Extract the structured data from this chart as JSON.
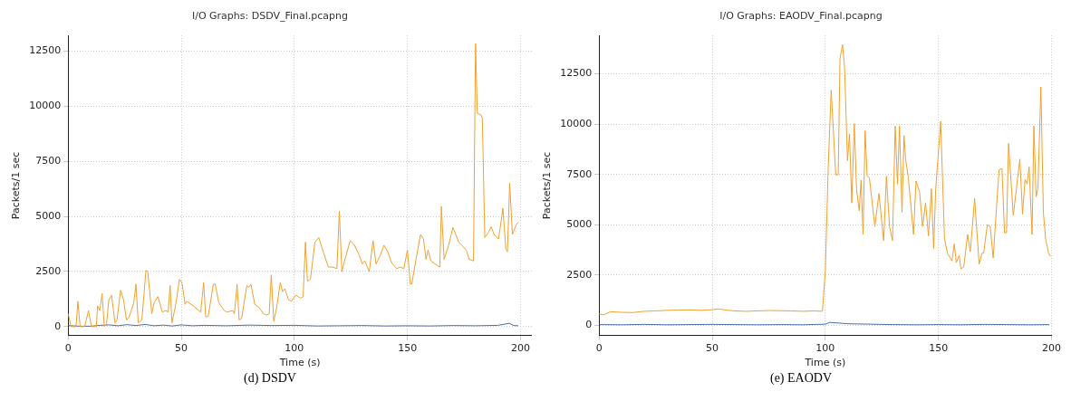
{
  "chart_data": [
    {
      "type": "line",
      "title": "I/O Graphs: DSDV_Final.pcapng",
      "xlabel": "Time (s)",
      "ylabel": "Packets/1 sec",
      "annotations": [
        "(d) DSDV"
      ],
      "xlim": [
        0,
        205
      ],
      "ylim": [
        -400,
        13200
      ],
      "xticks": [
        0,
        50,
        100,
        150,
        200
      ],
      "yticks": [
        0,
        2500,
        5000,
        7500,
        10000,
        12500
      ],
      "grid": true,
      "legend": false,
      "marker": "none",
      "line_style": "solid",
      "series": [
        {
          "color": "#f0a030",
          "x": [
            0,
            1.3,
            3.5,
            4.3,
            5.3,
            7.3,
            9,
            10.3,
            12.5,
            13,
            14,
            15,
            16,
            17,
            18,
            19.2,
            20.7,
            21.6,
            23.2,
            24.5,
            25.8,
            27,
            29,
            30,
            31,
            32.6,
            34.4,
            35.2,
            37,
            38,
            39.7,
            41.6,
            43.2,
            44.2,
            45.1,
            45.9,
            47.7,
            49.2,
            50.3,
            51.7,
            52.4,
            55.4,
            58.6,
            59.9,
            60.8,
            61.9,
            64.2,
            65,
            66.6,
            69,
            70.2,
            72.8,
            73.5,
            74.7,
            75.6,
            76.7,
            79,
            79.9,
            80.8,
            82.5,
            84.4,
            86.3,
            87.6,
            88.9,
            89.8,
            90.9,
            92.2,
            93.8,
            94.8,
            95.8,
            97.4,
            98.7,
            100.6,
            102.6,
            103.9,
            104.9,
            105.8,
            107.1,
            109.1,
            110.8,
            113,
            115,
            116.9,
            118.8,
            119.9,
            121,
            122,
            124.7,
            126.6,
            128.6,
            130.1,
            131.2,
            133.1,
            134.8,
            136.1,
            137.9,
            139.6,
            141.3,
            142.9,
            145.2,
            146.8,
            148.4,
            150,
            151.3,
            151.9,
            153.9,
            155.8,
            157.1,
            158.2,
            159.1,
            160.4,
            162.3,
            164.3,
            165,
            166.2,
            168.2,
            170.1,
            172.7,
            176,
            177.3,
            179.2,
            180.1,
            180.9,
            182.5,
            183.1,
            184.2,
            185.7,
            187,
            188.3,
            190.3,
            192.2,
            193.5,
            194.2,
            195.2,
            196.4,
            198,
            199
          ],
          "values": [
            590,
            0,
            0,
            1150,
            0,
            0,
            730,
            0,
            0,
            940,
            730,
            1500,
            0,
            140,
            1220,
            1430,
            170,
            300,
            1650,
            1220,
            300,
            440,
            1080,
            1930,
            170,
            300,
            2560,
            2490,
            590,
            1080,
            1365,
            660,
            730,
            660,
            1860,
            170,
            1080,
            2140,
            2000,
            1010,
            1150,
            940,
            660,
            2000,
            450,
            450,
            1930,
            1930,
            1080,
            730,
            660,
            730,
            590,
            1930,
            300,
            380,
            1860,
            1790,
            1930,
            1010,
            870,
            590,
            520,
            590,
            2350,
            240,
            870,
            2000,
            1580,
            1720,
            1220,
            1150,
            1435,
            1290,
            1360,
            3830,
            2070,
            2140,
            3830,
            4040,
            3330,
            2700,
            2700,
            2630,
            5230,
            2490,
            2910,
            3900,
            3690,
            3260,
            2840,
            2980,
            2490,
            3900,
            2840,
            3200,
            3690,
            3400,
            2910,
            2630,
            2700,
            2630,
            3470,
            1930,
            1930,
            3120,
            4180,
            3970,
            3050,
            3470,
            2980,
            2840,
            2700,
            5450,
            3050,
            3690,
            4500,
            3830,
            3470,
            3050,
            2980,
            12830,
            9670,
            9600,
            9450,
            4040,
            4250,
            4530,
            4180,
            3970,
            5370,
            3540,
            3400,
            6500,
            4180,
            4600,
            4740
          ]
        },
        {
          "color": "#4a6fa5",
          "x": [
            0,
            5,
            10,
            14,
            18,
            22,
            26,
            30,
            34,
            38,
            42,
            46,
            50,
            55,
            60,
            70,
            80,
            90,
            100,
            110,
            120,
            130,
            140,
            150,
            160,
            170,
            180,
            190,
            195,
            197,
            199
          ],
          "values": [
            50,
            20,
            20,
            60,
            80,
            40,
            90,
            50,
            100,
            40,
            70,
            30,
            80,
            40,
            60,
            40,
            70,
            50,
            60,
            30,
            40,
            50,
            30,
            40,
            30,
            50,
            40,
            60,
            150,
            50,
            40
          ]
        }
      ]
    },
    {
      "type": "line",
      "title": "I/O Graphs: EAODV_Final.pcapng",
      "xlabel": "Time (s)",
      "ylabel": "Packets/1 sec",
      "annotations": [
        "(e) EAODV"
      ],
      "xlim": [
        0,
        200
      ],
      "ylim": [
        -500,
        14400
      ],
      "xticks": [
        0,
        50,
        100,
        150,
        200
      ],
      "yticks": [
        0,
        2500,
        5000,
        7500,
        10000,
        12500
      ],
      "grid": true,
      "legend": false,
      "marker": "none",
      "line_style": "solid",
      "series": [
        {
          "color": "#f0a030",
          "x": [
            0,
            2,
            5,
            10,
            15,
            20,
            25,
            30,
            35,
            40,
            45,
            50,
            53,
            56,
            60,
            65,
            70,
            75,
            80,
            85,
            90,
            95,
            98.7,
            100,
            101.3,
            102.6,
            104.6,
            105.7,
            106.5,
            107.6,
            108.5,
            109.8,
            110.7,
            111.7,
            112.8,
            113.8,
            115,
            115.8,
            116.7,
            117.6,
            118.5,
            119.5,
            121.9,
            123.7,
            125.8,
            127,
            128.4,
            129.7,
            130.9,
            131.9,
            132.8,
            133.9,
            134.8,
            135.5,
            136.7,
            139,
            140.1,
            141.7,
            143,
            144.3,
            145.6,
            146.9,
            147.9,
            148.8,
            151,
            152.7,
            154,
            156,
            157,
            157.9,
            159.2,
            159.9,
            161.2,
            162.9,
            164.1,
            166,
            168,
            169.3,
            170,
            171.6,
            172.9,
            174.2,
            176.8,
            178.1,
            179.2,
            180.1,
            181,
            183.1,
            186,
            187.2,
            188.3,
            189.2,
            190.1,
            191.4,
            192.2,
            193.2,
            194,
            195.3,
            196.4,
            197.4,
            198.7,
            199.6
          ],
          "values": [
            560,
            520,
            680,
            650,
            640,
            700,
            720,
            750,
            760,
            770,
            750,
            780,
            820,
            760,
            720,
            700,
            720,
            740,
            730,
            720,
            700,
            720,
            700,
            2650,
            7870,
            11690,
            7480,
            7480,
            13250,
            13950,
            12860,
            8180,
            9510,
            6080,
            10020,
            6780,
            5690,
            7220,
            4520,
            9670,
            7410,
            7330,
            4910,
            6550,
            4210,
            7410,
            4910,
            4210,
            9900,
            7020,
            9900,
            5610,
            9430,
            8260,
            7330,
            4520,
            7170,
            6600,
            4910,
            6080,
            4440,
            6780,
            3820,
            6780,
            10130,
            4290,
            3590,
            3200,
            4050,
            3120,
            3480,
            2810,
            2900,
            4520,
            3660,
            6310,
            3040,
            3590,
            3590,
            4990,
            4910,
            3350,
            7720,
            7800,
            4600,
            4600,
            9040,
            5460,
            8260,
            5530,
            7250,
            7020,
            7870,
            4520,
            9900,
            6390,
            6780,
            11850,
            5610,
            4290,
            3590,
            3430
          ]
        },
        {
          "color": "#4a6fa5",
          "x": [
            0,
            10,
            20,
            30,
            40,
            50,
            60,
            70,
            80,
            90,
            100,
            102,
            110,
            120,
            130,
            140,
            150,
            160,
            170,
            180,
            190,
            199
          ],
          "values": [
            40,
            30,
            50,
            30,
            40,
            50,
            40,
            30,
            40,
            30,
            60,
            150,
            80,
            60,
            40,
            30,
            40,
            30,
            50,
            40,
            30,
            40
          ]
        }
      ]
    }
  ]
}
